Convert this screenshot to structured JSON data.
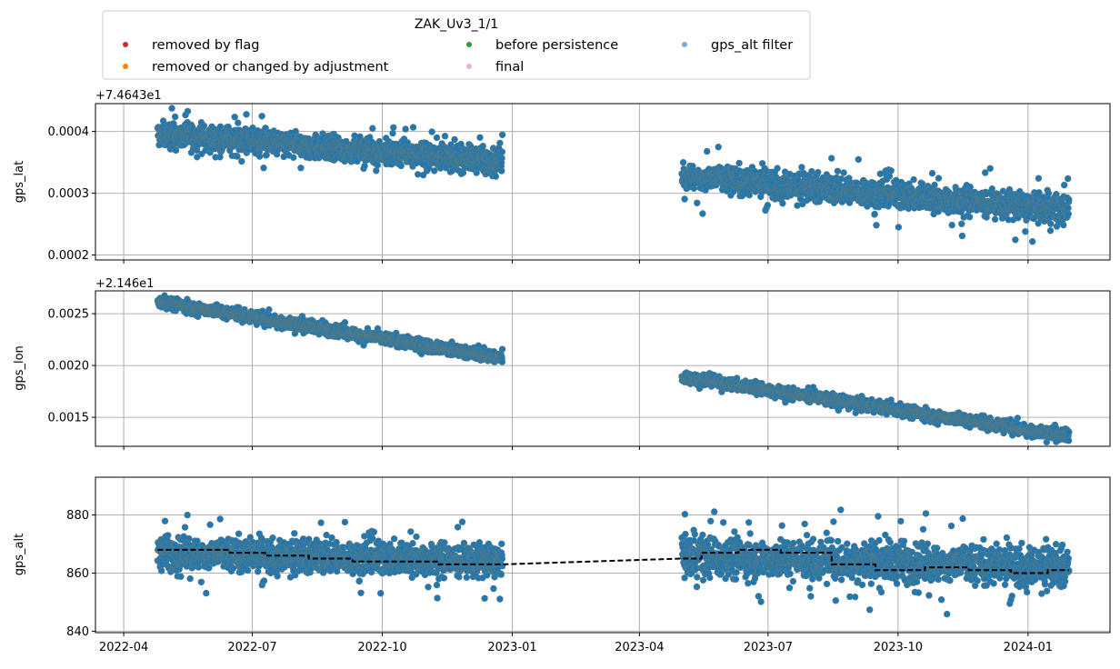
{
  "legend": {
    "title": "ZAK_Uv3_1/1",
    "entries": [
      {
        "label": "removed by flag",
        "color": "#d62728"
      },
      {
        "label": "removed or changed by adjustment",
        "color": "#ff7f0e"
      },
      {
        "label": "before persistence",
        "color": "#2ca02c"
      },
      {
        "label": "final",
        "color": "#e377c2"
      },
      {
        "label": "gps_alt filter",
        "color": "#1f77b4"
      }
    ],
    "placement": "top-center, above plots, 3 columns"
  },
  "colors": {
    "points": "#1f77b4",
    "point_edge": "#4d7a8a",
    "median_line": "#000000",
    "grid": "#b0b0b0"
  },
  "chart_data": [
    {
      "type": "scatter",
      "ylabel": "gps_lat",
      "offset_label": "+7.4643e1",
      "ylim": [
        0.000192,
        0.000445
      ],
      "yticks": [
        0.0002,
        0.0003,
        0.0004
      ],
      "ytick_labels": [
        "0.0002",
        "0.0003",
        "0.0004"
      ],
      "grid": true,
      "segments": [
        {
          "start": "2022-04-25",
          "end": "2022-12-25",
          "y_start": 0.000395,
          "y_end": 0.000352,
          "spread": 1.8e-05,
          "outlier_spread": 4.5e-05
        },
        {
          "start": "2023-05-01",
          "end": "2024-01-30",
          "y_start": 0.000328,
          "y_end": 0.000272,
          "spread": 2e-05,
          "outlier_spread": 6e-05
        }
      ]
    },
    {
      "type": "scatter",
      "ylabel": "gps_lon",
      "offset_label": "+2.146e1",
      "ylim": [
        0.00122,
        0.00272
      ],
      "yticks": [
        0.0015,
        0.002,
        0.0025
      ],
      "ytick_labels": [
        "0.0015",
        "0.0020",
        "0.0025"
      ],
      "grid": true,
      "segments": [
        {
          "start": "2022-04-25",
          "end": "2022-12-25",
          "y_start": 0.00262,
          "y_end": 0.00207,
          "spread": 5e-05,
          "outlier_spread": 0.0001
        },
        {
          "start": "2023-05-01",
          "end": "2024-01-30",
          "y_start": 0.00189,
          "y_end": 0.00132,
          "spread": 5e-05,
          "outlier_spread": 0.0001
        }
      ]
    },
    {
      "type": "scatter",
      "ylabel": "gps_alt",
      "ylim": [
        839.5,
        893
      ],
      "yticks": [
        840,
        860,
        880
      ],
      "ytick_labels": [
        "840",
        "860",
        "880"
      ],
      "grid": true,
      "segments": [
        {
          "start": "2022-04-25",
          "end": "2022-12-25",
          "y_start": 867,
          "y_end": 864,
          "spread": 5,
          "outlier_spread": 14
        },
        {
          "start": "2023-05-01",
          "end": "2024-01-30",
          "y_start": 866,
          "y_end": 862,
          "spread": 6,
          "outlier_spread": 18
        }
      ],
      "median_line": {
        "style": "dashed",
        "x": [
          "2022-04-25",
          "2022-06-15",
          "2022-06-15",
          "2022-07-10",
          "2022-07-10",
          "2022-08-10",
          "2022-08-10",
          "2022-09-10",
          "2022-09-10",
          "2022-11-10",
          "2022-11-10",
          "2022-12-25",
          "2023-05-01",
          "2023-05-15",
          "2023-05-15",
          "2023-06-10",
          "2023-06-10",
          "2023-07-10",
          "2023-07-10",
          "2023-08-15",
          "2023-08-15",
          "2023-09-15",
          "2023-09-15",
          "2023-10-20",
          "2023-10-20",
          "2023-11-20",
          "2023-11-20",
          "2023-12-20",
          "2023-12-20",
          "2024-01-15",
          "2024-01-15",
          "2024-01-30"
        ],
        "y": [
          868,
          868,
          867,
          867,
          866,
          866,
          865,
          865,
          864,
          864,
          863,
          863,
          865,
          865,
          867,
          867,
          868,
          868,
          867,
          867,
          863,
          863,
          861,
          861,
          862,
          862,
          861,
          861,
          860,
          860,
          861,
          861
        ]
      }
    }
  ],
  "x_axis": {
    "range": [
      "2022-03-12",
      "2024-02-28"
    ],
    "ticks": [
      "2022-04-01",
      "2022-07-01",
      "2022-10-01",
      "2023-01-01",
      "2023-04-01",
      "2023-07-01",
      "2023-10-01",
      "2024-01-01"
    ],
    "tick_labels": [
      "2022-04",
      "2022-07",
      "2022-10",
      "2023-01",
      "2023-04",
      "2023-07",
      "2023-10",
      "2024-01"
    ]
  }
}
